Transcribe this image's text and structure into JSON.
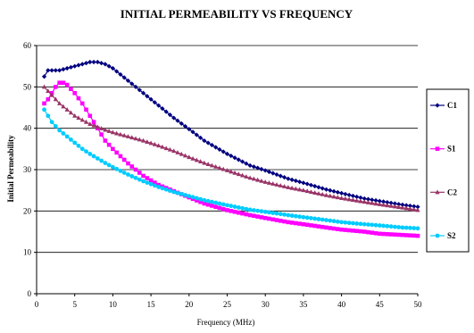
{
  "chart_data": {
    "type": "line",
    "title": "INITIAL PERMEABILITY VS FREQUENCY",
    "xlabel": "Frequency (MHz)",
    "ylabel": "Initial Permeability",
    "xlim": [
      0,
      50
    ],
    "ylim": [
      0,
      60
    ],
    "xticks": [
      "0",
      "5",
      "10",
      "15",
      "20",
      "25",
      "30",
      "35",
      "40",
      "45",
      "50"
    ],
    "yticks": [
      "0",
      "10",
      "20",
      "30",
      "40",
      "50",
      "60"
    ],
    "grid": "horizontal",
    "legend_position": "right",
    "series": [
      {
        "name": "C1",
        "color": "#000080",
        "marker": "diamond",
        "x": [
          1,
          1.5,
          2,
          3,
          4,
          5,
          6,
          7,
          8,
          9,
          10,
          11,
          12,
          13,
          14,
          15,
          16,
          18,
          20,
          22,
          25,
          28,
          30,
          33,
          35,
          38,
          40,
          43,
          45,
          48,
          50
        ],
        "y": [
          52.5,
          54,
          54,
          54,
          54.5,
          55,
          55.5,
          56,
          56,
          55.5,
          54.5,
          53,
          51.5,
          50,
          48.5,
          47,
          45.5,
          42.5,
          39.8,
          37,
          33.8,
          31,
          29.8,
          27.8,
          26.8,
          25.2,
          24.3,
          23,
          22.4,
          21.5,
          21
        ]
      },
      {
        "name": "S1",
        "color": "#FF00FF",
        "marker": "square",
        "x": [
          1,
          1.5,
          2,
          2.5,
          3,
          3.5,
          4,
          5,
          6,
          7,
          8,
          9,
          10,
          12,
          14,
          16,
          18,
          20,
          22,
          25,
          28,
          30,
          33,
          35,
          38,
          40,
          43,
          45,
          48,
          50
        ],
        "y": [
          46,
          47,
          48.5,
          50,
          51,
          51,
          50.5,
          48.5,
          46,
          43,
          40,
          37,
          35,
          31.5,
          28.5,
          26.3,
          24.8,
          23.3,
          21.8,
          20.2,
          19,
          18.3,
          17.3,
          16.8,
          16,
          15.5,
          15,
          14.5,
          14.2,
          14
        ]
      },
      {
        "name": "C2",
        "color": "#993366",
        "marker": "triangle",
        "x": [
          1,
          1.5,
          2,
          3,
          4,
          5,
          6,
          7,
          8,
          9,
          10,
          12,
          14,
          16,
          18,
          20,
          22,
          25,
          28,
          30,
          33,
          35,
          38,
          40,
          43,
          45,
          48,
          50
        ],
        "y": [
          50,
          49,
          48,
          46,
          44.5,
          43,
          42,
          41,
          40.3,
          39.6,
          39,
          38,
          37,
          35.8,
          34.5,
          33,
          31.6,
          29.8,
          28,
          27,
          25.7,
          25,
          23.8,
          23.1,
          22.2,
          21.6,
          20.8,
          20.2
        ]
      },
      {
        "name": "S2",
        "color": "#00CCFF",
        "marker": "circle",
        "x": [
          1,
          1.5,
          2,
          3,
          4,
          5,
          6,
          7,
          8,
          9,
          10,
          12,
          14,
          16,
          18,
          20,
          22,
          25,
          28,
          30,
          33,
          35,
          38,
          40,
          43,
          45,
          48,
          50
        ],
        "y": [
          44.5,
          43,
          41.5,
          39.5,
          38,
          36.5,
          35,
          33.8,
          32.7,
          31.6,
          30.6,
          28.8,
          27.2,
          25.8,
          24.6,
          23.6,
          22.6,
          21.4,
          20.3,
          19.8,
          19,
          18.5,
          17.8,
          17.3,
          16.8,
          16.5,
          16,
          15.8
        ]
      }
    ]
  }
}
